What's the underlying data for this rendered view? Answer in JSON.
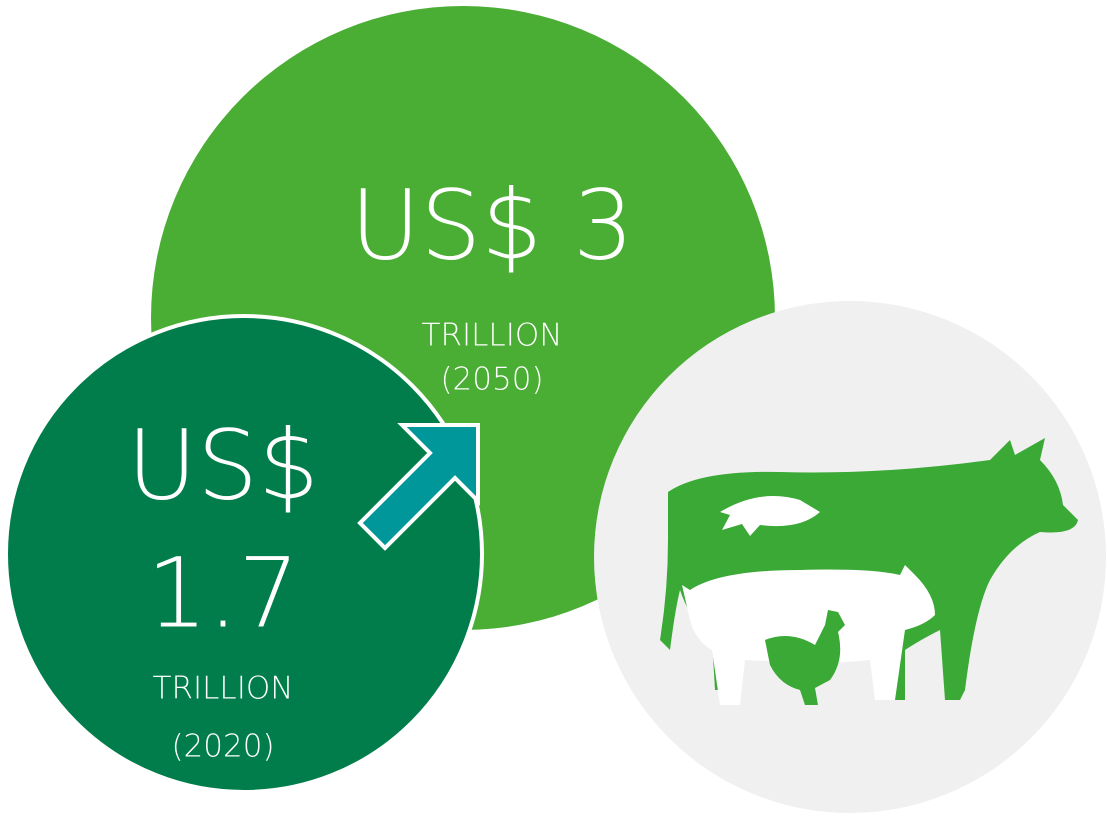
{
  "future": {
    "amount": "US$ 3",
    "unit": "TRILLION",
    "year": "(2050)"
  },
  "current": {
    "currency": "US$",
    "amount": "1.7",
    "unit": "TRILLION",
    "year": "(2020)"
  }
}
